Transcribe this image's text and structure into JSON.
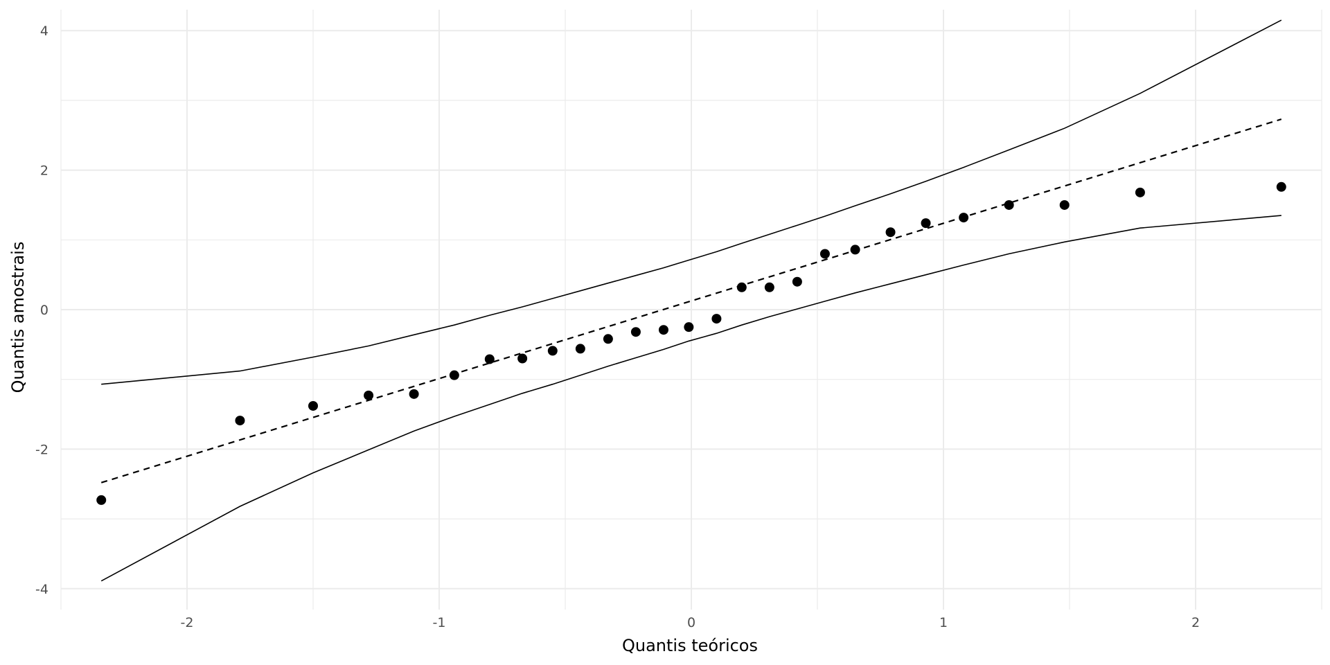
{
  "chart_data": {
    "type": "scatter",
    "title": "",
    "xlabel": "Quantis teóricos",
    "ylabel": "Quantis amostrais",
    "xlim": [
      -2.5,
      2.5
    ],
    "ylim": [
      -4.3,
      4.3
    ],
    "x_ticks": [
      -2,
      -1,
      0,
      1,
      2
    ],
    "x_tick_labels": [
      "-2",
      "-1",
      "0",
      "1",
      "2"
    ],
    "y_ticks": [
      -4,
      -2,
      0,
      2,
      4
    ],
    "y_tick_labels": [
      "-4",
      "-2",
      "0",
      "2",
      "4"
    ],
    "x_minor_ticks": [
      -2.5,
      -1.5,
      -0.5,
      0.5,
      1.5,
      2.5
    ],
    "y_minor_ticks": [
      -3,
      -1,
      1,
      3
    ],
    "grid": true,
    "points": {
      "x": [
        -2.34,
        -1.79,
        -1.5,
        -1.28,
        -1.1,
        -0.94,
        -0.8,
        -0.67,
        -0.55,
        -0.44,
        -0.33,
        -0.22,
        -0.11,
        -0.01,
        0.1,
        0.2,
        0.31,
        0.42,
        0.53,
        0.65,
        0.79,
        0.93,
        1.08,
        1.26,
        1.48,
        1.78,
        2.34
      ],
      "y": [
        -2.73,
        -1.59,
        -1.38,
        -1.23,
        -1.21,
        -0.94,
        -0.71,
        -0.7,
        -0.59,
        -0.56,
        -0.42,
        -0.32,
        -0.29,
        -0.25,
        -0.13,
        0.32,
        0.32,
        0.4,
        0.8,
        0.86,
        1.11,
        1.24,
        1.32,
        1.5,
        1.5,
        1.68,
        1.76
      ]
    },
    "reference_line": {
      "x": [
        -2.34,
        2.34
      ],
      "y": [
        -2.48,
        2.73
      ],
      "style": "dashed"
    },
    "upper_band": {
      "x": [
        -2.34,
        -1.79,
        -1.5,
        -1.28,
        -1.1,
        -0.94,
        -0.8,
        -0.67,
        -0.55,
        -0.44,
        -0.33,
        -0.22,
        -0.11,
        -0.01,
        0.1,
        0.2,
        0.31,
        0.42,
        0.53,
        0.65,
        0.79,
        0.93,
        1.08,
        1.26,
        1.48,
        1.78,
        2.34
      ],
      "y": [
        -1.07,
        -0.88,
        -0.68,
        -0.52,
        -0.36,
        -0.22,
        -0.08,
        0.04,
        0.16,
        0.27,
        0.38,
        0.49,
        0.6,
        0.71,
        0.83,
        0.95,
        1.08,
        1.21,
        1.34,
        1.49,
        1.66,
        1.84,
        2.04,
        2.29,
        2.6,
        3.1,
        4.15
      ]
    },
    "lower_band": {
      "x": [
        -2.34,
        -1.79,
        -1.5,
        -1.28,
        -1.1,
        -0.94,
        -0.8,
        -0.67,
        -0.55,
        -0.44,
        -0.33,
        -0.22,
        -0.11,
        -0.01,
        0.1,
        0.2,
        0.31,
        0.42,
        0.53,
        0.65,
        0.79,
        0.93,
        1.08,
        1.26,
        1.48,
        1.78,
        2.34
      ],
      "y": [
        -3.89,
        -2.82,
        -2.34,
        -2.01,
        -1.74,
        -1.53,
        -1.36,
        -1.2,
        -1.07,
        -0.94,
        -0.81,
        -0.69,
        -0.57,
        -0.45,
        -0.34,
        -0.22,
        -0.1,
        0.01,
        0.12,
        0.24,
        0.37,
        0.5,
        0.64,
        0.8,
        0.97,
        1.17,
        1.35
      ]
    }
  }
}
